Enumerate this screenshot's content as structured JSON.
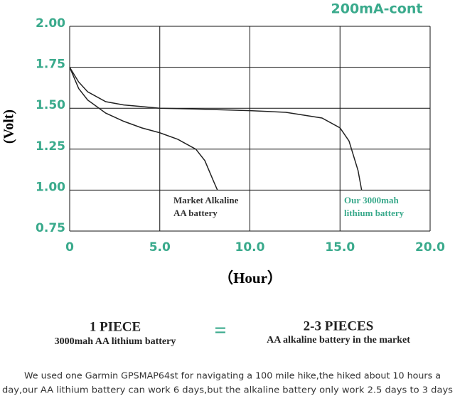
{
  "chart_data": {
    "type": "line",
    "title": "200mA-cont",
    "ylabel": "(Volt)",
    "xlabel": "（Hour）",
    "xlim": [
      0,
      20
    ],
    "ylim": [
      0.75,
      2.0
    ],
    "xticks": [
      0,
      {
        "value": 5,
        "label": "5.0"
      },
      {
        "value": 10,
        "label": "10.0"
      },
      {
        "value": 15,
        "label": "15.0"
      },
      {
        "value": 20,
        "label": "20.0"
      }
    ],
    "yticks": [
      {
        "value": 0.75,
        "label": "0.75"
      },
      {
        "value": 1.0,
        "label": "1.00"
      },
      {
        "value": 1.25,
        "label": "1.25"
      },
      {
        "value": 1.5,
        "label": "1.50"
      },
      {
        "value": 1.75,
        "label": "1.75"
      },
      {
        "value": 2.0,
        "label": "2.00"
      }
    ],
    "grid": true,
    "tick_color": "#3aaa8c",
    "series": [
      {
        "color": "#222222",
        "x": [
          0,
          0.5,
          1,
          2,
          3,
          4,
          5,
          6,
          7,
          7.5,
          8,
          8.2
        ],
        "values": [
          1.75,
          1.62,
          1.55,
          1.47,
          1.42,
          1.38,
          1.35,
          1.31,
          1.25,
          1.18,
          1.05,
          1.0
        ]
      },
      {
        "color": "#222222",
        "x": [
          0,
          0.5,
          1,
          2,
          3,
          4,
          5,
          7,
          10,
          12,
          14,
          15,
          15.5,
          16,
          16.2
        ],
        "values": [
          1.75,
          1.66,
          1.6,
          1.54,
          1.52,
          1.51,
          1.5,
          1.495,
          1.485,
          1.475,
          1.44,
          1.38,
          1.3,
          1.12,
          1.0
        ]
      }
    ],
    "annotations": [
      {
        "lines": [
          "Market Alkaline",
          "AA battery"
        ],
        "color": "#333333"
      },
      {
        "lines": [
          "Our 3000mah",
          "lithium battery"
        ],
        "color": "#3aaa8c"
      }
    ]
  },
  "comparison": {
    "left": {
      "title": "1 PIECE",
      "subtitle": "3000mah AA lithium battery"
    },
    "equals": "=",
    "right": {
      "title": "2-3 PIECES",
      "subtitle": "AA alkaline battery in the market"
    }
  },
  "note": [
    "We used one Garmin GPSMAP64st for navigating a 100 mile hike,the hiked about 10 hours a",
    "day,our AA lithium battery can work 6 days,but the alkaline battery only work 2.5 days to 3 days"
  ]
}
